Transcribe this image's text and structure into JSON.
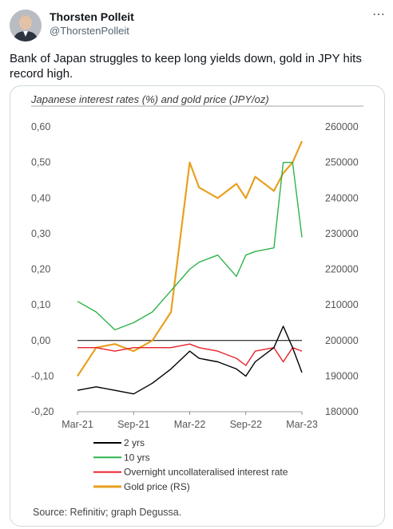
{
  "tweet": {
    "author_name": "Thorsten Polleit",
    "author_handle": "@ThorstenPolleit",
    "more_icon": "more-options-icon",
    "text": "Bank of Japan struggles to keep long yields down, gold in JPY hits record high."
  },
  "chart_card": {
    "source": "Source: Refinitiv; graph Degussa."
  },
  "colors": {
    "yrs2": "#000000",
    "yrs10": "#2db34a",
    "overnight": "#e8202a",
    "gold": "#e8a020"
  },
  "chart_data": {
    "type": "line",
    "title": "Japanese interest rates (%) and gold price (JPY/oz)",
    "x_ticks": [
      "Mar-21",
      "Sep-21",
      "Mar-22",
      "Sep-22",
      "Mar-23"
    ],
    "y_left": {
      "ticks": [
        "0,60",
        "0,50",
        "0,40",
        "0,30",
        "0,20",
        "0,10",
        "0,00",
        "-0,10",
        "-0,20"
      ],
      "range": [
        -0.2,
        0.6
      ]
    },
    "y_right": {
      "ticks": [
        "260000",
        "250000",
        "240000",
        "230000",
        "220000",
        "210000",
        "200000",
        "190000",
        "180000"
      ],
      "range": [
        180000,
        260000
      ]
    },
    "grid": false,
    "legend_position": "bottom",
    "series": [
      {
        "name": "2 yrs",
        "axis": "left",
        "x": [
          "Mar-21",
          "May-21",
          "Jul-21",
          "Sep-21",
          "Nov-21",
          "Jan-22",
          "Mar-22",
          "Apr-22",
          "Jun-22",
          "Aug-22",
          "Sep-22",
          "Oct-22",
          "Dec-22",
          "Jan-23",
          "Feb-23",
          "Mar-23"
        ],
        "values": [
          -0.14,
          -0.13,
          -0.14,
          -0.15,
          -0.12,
          -0.08,
          -0.03,
          -0.05,
          -0.06,
          -0.08,
          -0.1,
          -0.06,
          -0.02,
          0.04,
          -0.02,
          -0.09
        ]
      },
      {
        "name": "10 yrs",
        "axis": "left",
        "x": [
          "Mar-21",
          "May-21",
          "Jul-21",
          "Sep-21",
          "Nov-21",
          "Jan-22",
          "Mar-22",
          "Apr-22",
          "Jun-22",
          "Aug-22",
          "Sep-22",
          "Oct-22",
          "Dec-22",
          "Jan-23",
          "Feb-23",
          "Mar-23"
        ],
        "values": [
          0.11,
          0.08,
          0.03,
          0.05,
          0.08,
          0.14,
          0.2,
          0.22,
          0.24,
          0.18,
          0.24,
          0.25,
          0.26,
          0.5,
          0.5,
          0.29
        ]
      },
      {
        "name": "Overnight uncollateralised interest rate",
        "axis": "left",
        "x": [
          "Mar-21",
          "May-21",
          "Jul-21",
          "Sep-21",
          "Nov-21",
          "Jan-22",
          "Mar-22",
          "Apr-22",
          "Jun-22",
          "Aug-22",
          "Sep-22",
          "Oct-22",
          "Dec-22",
          "Jan-23",
          "Feb-23",
          "Mar-23"
        ],
        "values": [
          -0.02,
          -0.02,
          -0.03,
          -0.02,
          -0.02,
          -0.02,
          -0.01,
          -0.02,
          -0.03,
          -0.05,
          -0.07,
          -0.03,
          -0.02,
          -0.06,
          -0.02,
          -0.03
        ]
      },
      {
        "name": "Gold price (RS)",
        "axis": "right",
        "x": [
          "Mar-21",
          "May-21",
          "Jul-21",
          "Sep-21",
          "Nov-21",
          "Jan-22",
          "Mar-22",
          "Apr-22",
          "Jun-22",
          "Aug-22",
          "Sep-22",
          "Oct-22",
          "Dec-22",
          "Jan-23",
          "Feb-23",
          "Mar-23"
        ],
        "values": [
          190000,
          198000,
          199000,
          197000,
          200000,
          208000,
          250000,
          243000,
          240000,
          244000,
          240000,
          246000,
          242000,
          247000,
          250000,
          256000
        ]
      }
    ]
  }
}
